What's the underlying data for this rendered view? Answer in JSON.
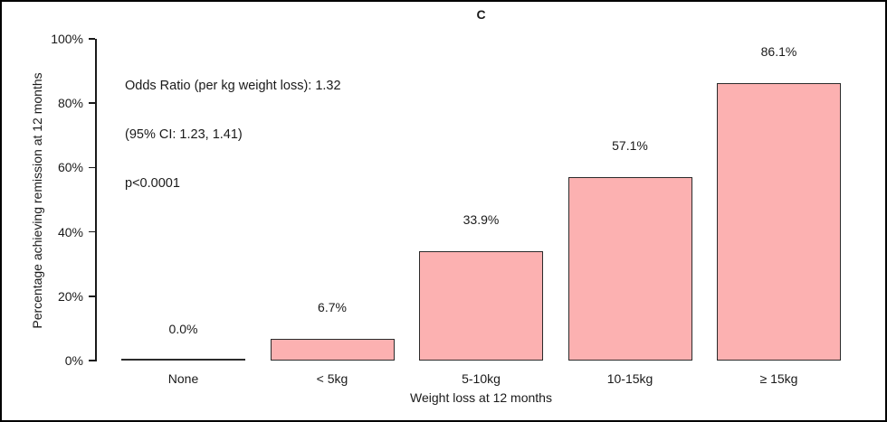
{
  "figure": {
    "panel_label": "C",
    "annotation_lines": [
      "Odds Ratio (per kg weight loss): 1.32",
      "(95% CI: 1.23, 1.41)",
      "p<0.0001"
    ]
  },
  "chart_data": {
    "type": "bar",
    "title": "C",
    "categories": [
      "None",
      "< 5kg",
      "5-10kg",
      "10-15kg",
      "≥ 15kg"
    ],
    "values": [
      0.0,
      6.7,
      33.9,
      57.1,
      86.1
    ],
    "value_labels": [
      "0.0%",
      "6.7%",
      "33.9%",
      "57.1%",
      "86.1%"
    ],
    "xlabel": "Weight loss at 12 months",
    "ylabel": "Percentage achieving remission at 12 months",
    "ylim": [
      0,
      100
    ],
    "yticks": [
      0,
      20,
      40,
      60,
      80,
      100
    ],
    "ytick_labels": [
      "0%",
      "20%",
      "40%",
      "60%",
      "80%",
      "100%"
    ],
    "grid": false,
    "legend": "none",
    "annotation": "Odds Ratio (per kg weight loss): 1.32\n(95% CI: 1.23, 1.41)\np<0.0001",
    "colors": {
      "bar_fill": "#FCB1B1",
      "bar_border": "#2b2b2b",
      "axis": "#1a1a1a",
      "text": "#1a1a1a",
      "background": "#ffffff",
      "frame_border": "#000000"
    }
  }
}
